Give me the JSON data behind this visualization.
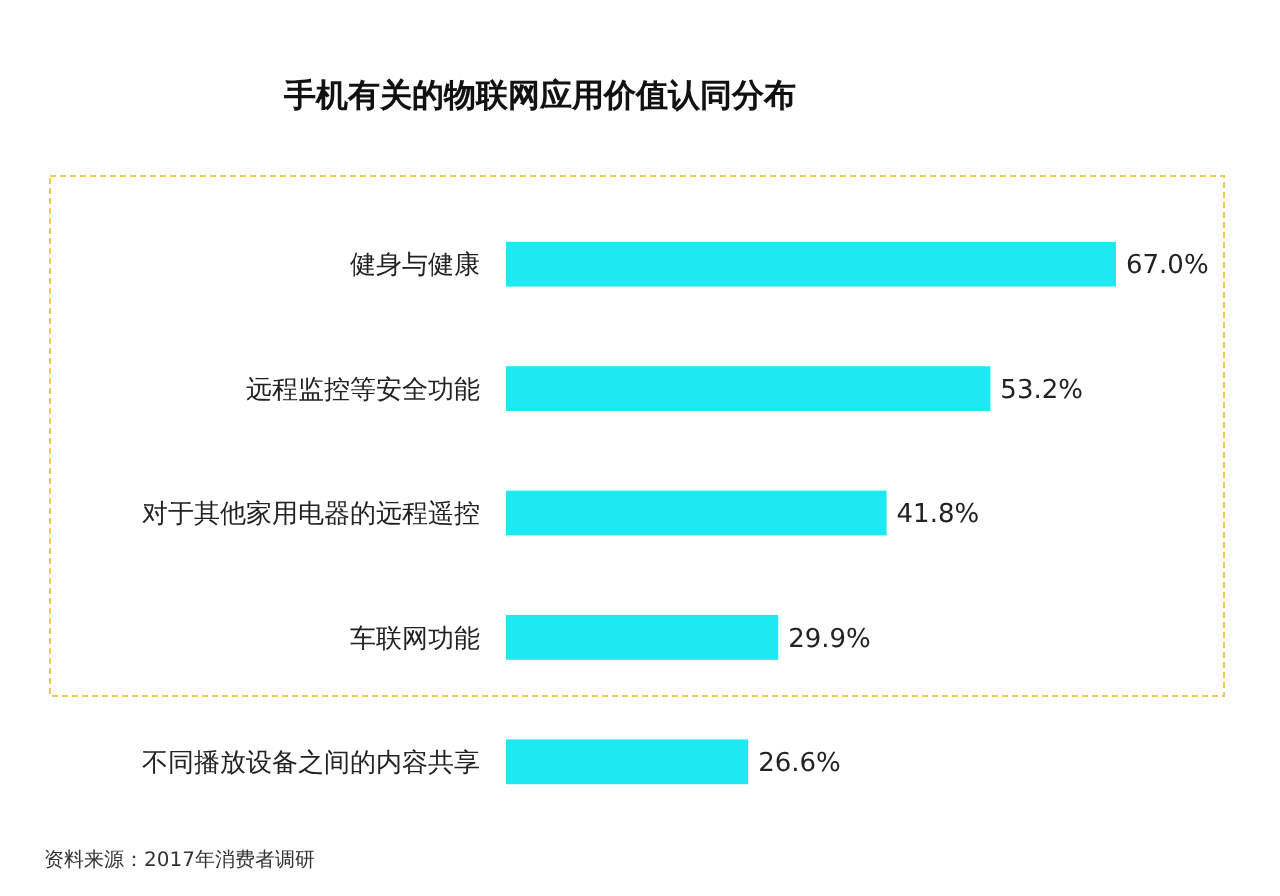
{
  "chart_data": {
    "type": "bar",
    "orientation": "horizontal",
    "title": "手机有关的物联网应用价值认同分布",
    "categories": [
      "健身与健康",
      "远程监控等安全功能",
      "对于其他家用电器的远程遥控",
      "车联网功能",
      "不同播放设备之间的内容共享"
    ],
    "values": [
      67.0,
      53.2,
      41.8,
      29.9,
      26.6
    ],
    "value_labels": [
      "67.0%",
      "53.2%",
      "41.8%",
      "29.9%",
      "26.6%"
    ],
    "color": "#1ee8f2",
    "annotations": [
      "资料来源：2017年消费者调研"
    ]
  }
}
